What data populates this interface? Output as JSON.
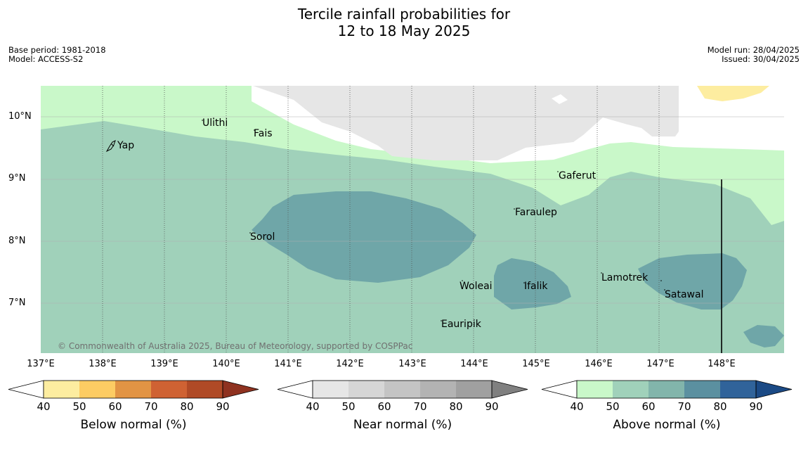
{
  "header": {
    "title_line1": "Tercile rainfall probabilities for",
    "title_line2": "12 to 18 May 2025",
    "base_period": "Base period: 1981-2018",
    "model": "Model: ACCESS-S2",
    "model_run": "Model run: 28/04/2025",
    "issued": "Issued: 30/04/2025"
  },
  "map": {
    "lat_labels": [
      "10°N",
      "9°N",
      "8°N",
      "7°N"
    ],
    "lon_labels": [
      "137°E",
      "138°E",
      "139°E",
      "140°E",
      "141°E",
      "142°E",
      "143°E",
      "144°E",
      "145°E",
      "146°E",
      "147°E",
      "148°E"
    ],
    "places": {
      "yap": "Yap",
      "ulithi": "Ulithi",
      "fais": "Fais",
      "gaferut": "Gaferut",
      "faraulep": "Faraulep",
      "sorol": "Sorol",
      "woleai": "Woleai",
      "ifalik": "Ifalik",
      "lamotrek": "Lamotrek",
      "satawal": "Satawal",
      "eauripik": "Eauripik"
    },
    "copyright": "© Commonwealth of Australia 2025, Bureau of Meteorology, supported by COSPPac"
  },
  "legends": {
    "below": {
      "label": "Below normal (%)",
      "ticks": [
        "40",
        "50",
        "60",
        "70",
        "80",
        "90"
      ],
      "colors": [
        "#fdeda0",
        "#fdcc63",
        "#e29444",
        "#cf6233",
        "#b04a26",
        "#8f3220"
      ]
    },
    "near": {
      "label": "Near normal (%)",
      "ticks": [
        "40",
        "50",
        "60",
        "70",
        "80",
        "90"
      ],
      "colors": [
        "#e6e6e6",
        "#d6d6d6",
        "#c4c4c4",
        "#b3b3b3",
        "#a0a0a0",
        "#808080"
      ]
    },
    "above": {
      "label": "Above normal (%)",
      "ticks": [
        "40",
        "50",
        "60",
        "70",
        "80",
        "90"
      ],
      "colors": [
        "#c9f8c9",
        "#a0d1ba",
        "#82b5ab",
        "#5b90a0",
        "#30639a",
        "#1b4a85"
      ]
    }
  }
}
